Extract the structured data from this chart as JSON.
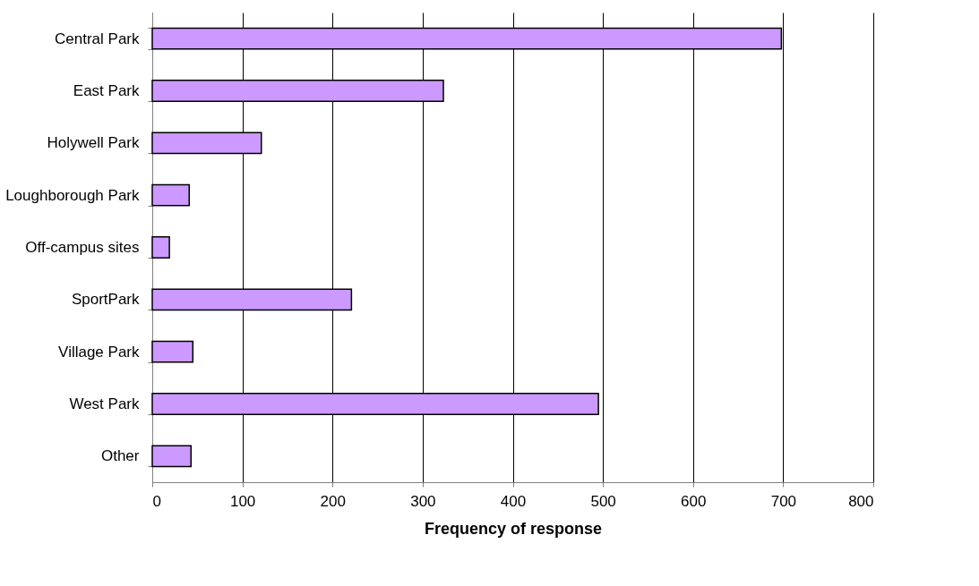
{
  "chart_data": {
    "type": "bar",
    "orientation": "horizontal",
    "xlabel": "Frequency of response",
    "categories": [
      "Central Park",
      "East Park",
      "Holywell Park",
      "Loughborough Park",
      "Off-campus sites",
      "SportPark",
      "Village Park",
      "West Park",
      "Other"
    ],
    "values": [
      698,
      323,
      121,
      41,
      19,
      221,
      45,
      495,
      43
    ],
    "color": "#cc99ff",
    "xlim": [
      0,
      800
    ],
    "xticks": [
      0,
      100,
      200,
      300,
      400,
      500,
      600,
      700,
      800
    ],
    "grid": "x"
  }
}
